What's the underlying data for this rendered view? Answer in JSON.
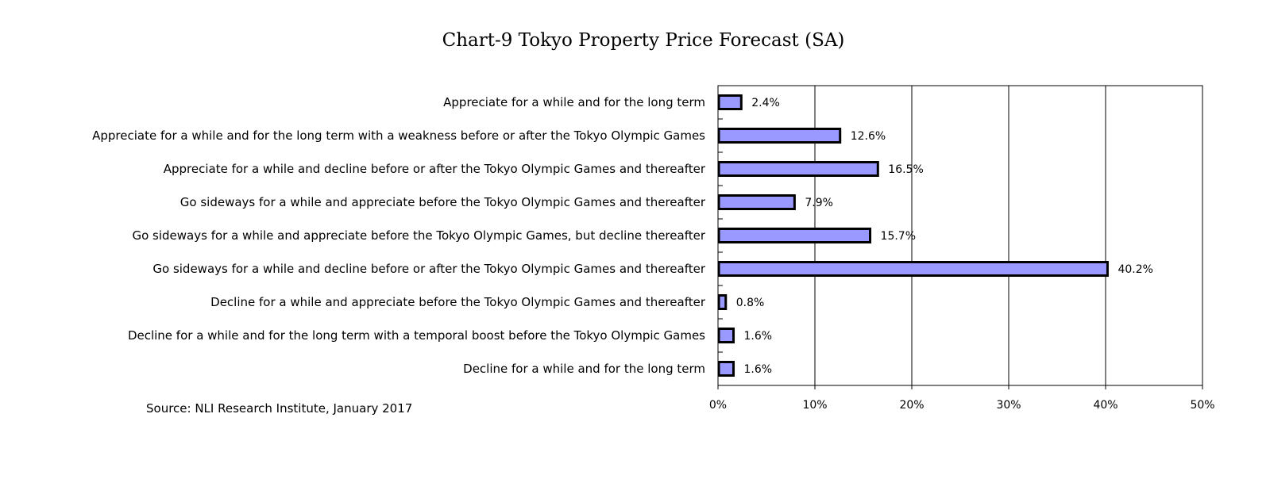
{
  "chart_data": {
    "type": "bar",
    "orientation": "horizontal",
    "title": "Chart-9  Tokyo Property Price Forecast (SA)",
    "source": "Source: NLI Research Institute, January 2017",
    "categories": [
      "Appreciate for a while and for the long term",
      "Appreciate for a while and for the long term with a weakness before or after the Tokyo Olympic Games",
      "Appreciate for a while and decline before or after the Tokyo Olympic Games and thereafter",
      "Go sideways for a while and appreciate before the Tokyo Olympic Games and thereafter",
      "Go sideways for a while and appreciate before the Tokyo Olympic Games, but decline thereafter",
      "Go sideways for a while and decline before or after the Tokyo Olympic Games and thereafter",
      "Decline for a while and appreciate before the Tokyo Olympic Games and thereafter",
      "Decline for a while and for the long term with a temporal boost before the Tokyo Olympic Games",
      "Decline for a while and for the long term"
    ],
    "values": [
      2.4,
      12.6,
      16.5,
      7.9,
      15.7,
      40.2,
      0.8,
      1.6,
      1.6
    ],
    "data_labels": [
      "2.4%",
      "12.6%",
      "16.5%",
      "7.9%",
      "15.7%",
      "40.2%",
      "0.8%",
      "1.6%",
      "1.6%"
    ],
    "xlim": [
      0,
      50
    ],
    "x_ticks": [
      "0%",
      "10%",
      "20%",
      "30%",
      "40%",
      "50%"
    ],
    "grid": "vertical",
    "legend": "none",
    "colors": {
      "bar_fill": "#9999ff",
      "bar_stroke": "#000000"
    }
  }
}
